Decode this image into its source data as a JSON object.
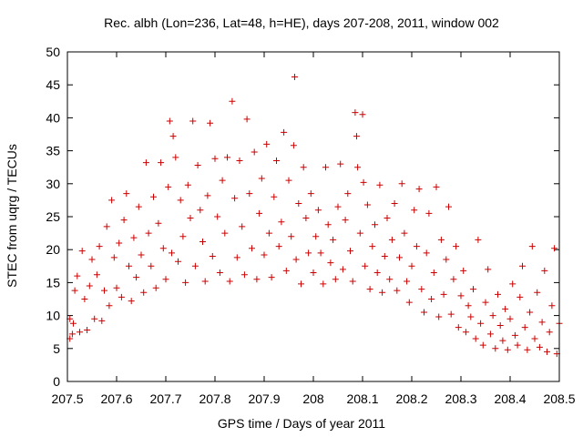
{
  "chart_data": {
    "type": "scatter",
    "title": "Rec. albh (Lon=236, Lat=48, h=HE), days 207-208, 2011, window 002",
    "xlabel": "GPS time / Days of year 2011",
    "ylabel": "STEC from uqrg / TECUs",
    "xlim": [
      207.5,
      208.5
    ],
    "ylim": [
      0,
      50
    ],
    "x_ticks": [
      207.5,
      207.6,
      207.7,
      207.8,
      207.9,
      208,
      208.1,
      208.2,
      208.3,
      208.4,
      208.5
    ],
    "x_tick_labels": [
      "207.5",
      "207.6",
      "207.7",
      "207.8",
      "207.9",
      "208",
      "208.1",
      "208.2",
      "208.3",
      "208.4",
      "208.5"
    ],
    "y_ticks": [
      0,
      5,
      10,
      15,
      20,
      25,
      30,
      35,
      40,
      45,
      50
    ],
    "y_tick_labels": [
      "0",
      "5",
      "10",
      "15",
      "20",
      "25",
      "30",
      "35",
      "40",
      "45",
      "50"
    ],
    "grid": false,
    "marker": "+",
    "marker_color": "#cc0000",
    "series": [
      {
        "points": [
          [
            207.505,
            6.5
          ],
          [
            207.51,
            7.2
          ],
          [
            207.505,
            9.5
          ],
          [
            207.512,
            8.8
          ],
          [
            207.515,
            13.8
          ],
          [
            207.52,
            16.0
          ],
          [
            207.525,
            7.5
          ],
          [
            207.53,
            19.8
          ],
          [
            207.535,
            12.5
          ],
          [
            207.54,
            7.8
          ],
          [
            207.545,
            14.5
          ],
          [
            207.55,
            18.5
          ],
          [
            207.555,
            9.5
          ],
          [
            207.56,
            16.2
          ],
          [
            207.565,
            20.5
          ],
          [
            207.57,
            9.2
          ],
          [
            207.575,
            13.8
          ],
          [
            207.58,
            23.5
          ],
          [
            207.585,
            11.5
          ],
          [
            207.59,
            27.5
          ],
          [
            207.595,
            18.8
          ],
          [
            207.6,
            14.2
          ],
          [
            207.605,
            21.0
          ],
          [
            207.61,
            12.8
          ],
          [
            207.615,
            24.5
          ],
          [
            207.62,
            28.5
          ],
          [
            207.625,
            17.5
          ],
          [
            207.63,
            12.2
          ],
          [
            207.635,
            21.8
          ],
          [
            207.64,
            15.8
          ],
          [
            207.645,
            26.5
          ],
          [
            207.65,
            19.2
          ],
          [
            207.655,
            13.5
          ],
          [
            207.66,
            33.2
          ],
          [
            207.665,
            22.5
          ],
          [
            207.67,
            17.5
          ],
          [
            207.675,
            28.0
          ],
          [
            207.68,
            14.2
          ],
          [
            207.685,
            24.0
          ],
          [
            207.69,
            33.2
          ],
          [
            207.695,
            20.2
          ],
          [
            207.7,
            15.5
          ],
          [
            207.705,
            29.5
          ],
          [
            207.708,
            39.5
          ],
          [
            207.712,
            19.5
          ],
          [
            207.715,
            37.2
          ],
          [
            207.72,
            34.0
          ],
          [
            207.725,
            18.2
          ],
          [
            207.73,
            27.5
          ],
          [
            207.735,
            22.0
          ],
          [
            207.74,
            15.0
          ],
          [
            207.745,
            29.8
          ],
          [
            207.75,
            24.8
          ],
          [
            207.755,
            39.5
          ],
          [
            207.76,
            17.5
          ],
          [
            207.765,
            32.8
          ],
          [
            207.77,
            26.0
          ],
          [
            207.775,
            21.2
          ],
          [
            207.78,
            15.2
          ],
          [
            207.785,
            28.2
          ],
          [
            207.79,
            39.2
          ],
          [
            207.795,
            19.0
          ],
          [
            207.8,
            33.8
          ],
          [
            207.805,
            25.0
          ],
          [
            207.81,
            16.5
          ],
          [
            207.815,
            30.5
          ],
          [
            207.82,
            22.5
          ],
          [
            207.825,
            34.0
          ],
          [
            207.83,
            15.2
          ],
          [
            207.835,
            42.5
          ],
          [
            207.84,
            27.8
          ],
          [
            207.845,
            18.8
          ],
          [
            207.85,
            33.5
          ],
          [
            207.855,
            23.5
          ],
          [
            207.86,
            16.2
          ],
          [
            207.865,
            39.8
          ],
          [
            207.87,
            28.5
          ],
          [
            207.875,
            20.2
          ],
          [
            207.88,
            34.8
          ],
          [
            207.885,
            15.5
          ],
          [
            207.89,
            25.5
          ],
          [
            207.895,
            30.8
          ],
          [
            207.9,
            19.2
          ],
          [
            207.905,
            36.0
          ],
          [
            207.91,
            22.5
          ],
          [
            207.915,
            15.8
          ],
          [
            207.92,
            28.0
          ],
          [
            207.925,
            33.5
          ],
          [
            207.93,
            20.5
          ],
          [
            207.935,
            24.2
          ],
          [
            207.94,
            37.8
          ],
          [
            207.945,
            16.8
          ],
          [
            207.95,
            30.5
          ],
          [
            207.955,
            22.0
          ],
          [
            207.96,
            35.8
          ],
          [
            207.962,
            46.2
          ],
          [
            207.965,
            18.5
          ],
          [
            207.97,
            27.0
          ],
          [
            207.975,
            14.8
          ],
          [
            207.98,
            32.5
          ],
          [
            207.985,
            24.8
          ],
          [
            207.99,
            19.5
          ],
          [
            207.995,
            28.5
          ],
          [
            208.0,
            16.5
          ],
          [
            208.005,
            22.0
          ],
          [
            208.01,
            26.0
          ],
          [
            208.015,
            19.5
          ],
          [
            208.02,
            14.8
          ],
          [
            208.025,
            32.5
          ],
          [
            208.03,
            23.8
          ],
          [
            208.035,
            18.0
          ],
          [
            208.04,
            21.5
          ],
          [
            208.045,
            15.5
          ],
          [
            208.05,
            26.5
          ],
          [
            208.055,
            33.0
          ],
          [
            208.06,
            17.0
          ],
          [
            208.065,
            24.5
          ],
          [
            208.07,
            28.5
          ],
          [
            208.075,
            19.8
          ],
          [
            208.08,
            15.2
          ],
          [
            208.085,
            40.8
          ],
          [
            208.088,
            37.2
          ],
          [
            208.09,
            32.5
          ],
          [
            208.095,
            22.5
          ],
          [
            208.1,
            40.5
          ],
          [
            208.102,
            30.2
          ],
          [
            208.105,
            17.5
          ],
          [
            208.11,
            26.8
          ],
          [
            208.115,
            14.0
          ],
          [
            208.12,
            20.5
          ],
          [
            208.125,
            23.8
          ],
          [
            208.13,
            16.5
          ],
          [
            208.135,
            29.8
          ],
          [
            208.14,
            13.5
          ],
          [
            208.145,
            19.0
          ],
          [
            208.15,
            24.8
          ],
          [
            208.155,
            15.5
          ],
          [
            208.16,
            21.5
          ],
          [
            208.165,
            27.0
          ],
          [
            208.17,
            13.8
          ],
          [
            208.175,
            18.8
          ],
          [
            208.18,
            30.0
          ],
          [
            208.185,
            22.5
          ],
          [
            208.19,
            15.2
          ],
          [
            208.195,
            12.0
          ],
          [
            208.2,
            17.5
          ],
          [
            208.205,
            26.0
          ],
          [
            208.21,
            20.5
          ],
          [
            208.215,
            29.2
          ],
          [
            208.22,
            14.0
          ],
          [
            208.225,
            10.5
          ],
          [
            208.23,
            19.5
          ],
          [
            208.235,
            25.5
          ],
          [
            208.24,
            12.5
          ],
          [
            208.245,
            16.5
          ],
          [
            208.25,
            29.5
          ],
          [
            208.255,
            9.8
          ],
          [
            208.26,
            21.5
          ],
          [
            208.265,
            13.2
          ],
          [
            208.27,
            18.5
          ],
          [
            208.275,
            26.5
          ],
          [
            208.28,
            10.2
          ],
          [
            208.285,
            15.5
          ],
          [
            208.29,
            20.5
          ],
          [
            208.295,
            8.2
          ],
          [
            208.3,
            13.0
          ],
          [
            208.305,
            16.8
          ],
          [
            208.31,
            7.5
          ],
          [
            208.315,
            11.5
          ],
          [
            208.32,
            9.8
          ],
          [
            208.325,
            14.0
          ],
          [
            208.33,
            6.5
          ],
          [
            208.335,
            21.5
          ],
          [
            208.34,
            8.8
          ],
          [
            208.345,
            5.5
          ],
          [
            208.35,
            12.0
          ],
          [
            208.355,
            17.0
          ],
          [
            208.36,
            7.2
          ],
          [
            208.365,
            10.0
          ],
          [
            208.37,
            5.0
          ],
          [
            208.375,
            13.2
          ],
          [
            208.38,
            8.5
          ],
          [
            208.385,
            6.2
          ],
          [
            208.39,
            11.0
          ],
          [
            208.395,
            4.8
          ],
          [
            208.4,
            9.5
          ],
          [
            208.405,
            14.8
          ],
          [
            208.41,
            7.0
          ],
          [
            208.415,
            5.5
          ],
          [
            208.42,
            12.8
          ],
          [
            208.425,
            17.5
          ],
          [
            208.43,
            8.2
          ],
          [
            208.435,
            4.8
          ],
          [
            208.44,
            10.5
          ],
          [
            208.445,
            20.5
          ],
          [
            208.45,
            6.5
          ],
          [
            208.455,
            13.5
          ],
          [
            208.46,
            5.2
          ],
          [
            208.465,
            9.0
          ],
          [
            208.47,
            16.8
          ],
          [
            208.475,
            4.5
          ],
          [
            208.48,
            7.5
          ],
          [
            208.485,
            11.5
          ],
          [
            208.49,
            20.2
          ],
          [
            208.495,
            4.2
          ],
          [
            208.5,
            8.8
          ]
        ]
      }
    ]
  }
}
